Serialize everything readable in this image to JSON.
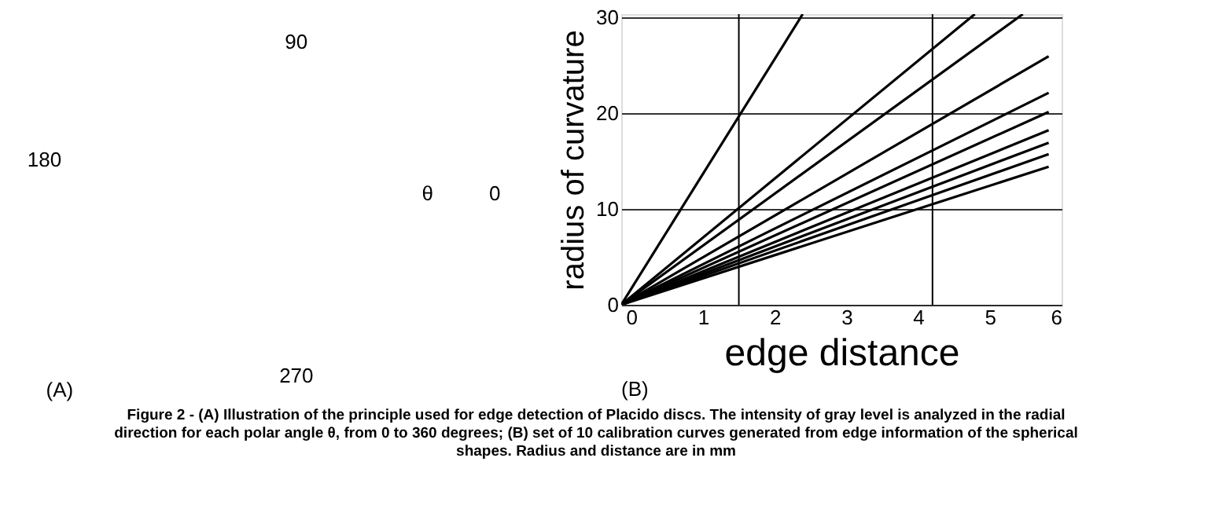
{
  "chart_data": {
    "type": "line",
    "xlabel": "edge distance",
    "ylabel": "radius of curvature",
    "xlim": [
      -0.14,
      6
    ],
    "ylim": [
      0,
      30.3
    ],
    "xticks": [
      0,
      1,
      2,
      3,
      4,
      5,
      6
    ],
    "yticks": [
      0,
      10,
      20,
      30
    ],
    "grid": "y",
    "legend": false,
    "line_style": "solid",
    "marker": "none",
    "ref_lines": [
      {
        "axis": "x",
        "value": 1.5,
        "color": "#000000"
      },
      {
        "axis": "x",
        "value": 4.2,
        "color": "#000000"
      }
    ],
    "series": [
      {
        "color": "#000000",
        "x": [
          -0.14,
          2.39
        ],
        "values": [
          0,
          30.3
        ]
      },
      {
        "color": "#000000",
        "x": [
          -0.14,
          4.79
        ],
        "values": [
          0,
          30.3
        ]
      },
      {
        "color": "#000000",
        "x": [
          -0.14,
          5.46
        ],
        "values": [
          0,
          30.3
        ]
      },
      {
        "color": "#000000",
        "x": [
          -0.14,
          5.82
        ],
        "values": [
          0,
          25.9
        ]
      },
      {
        "color": "#000000",
        "x": [
          -0.14,
          5.82
        ],
        "values": [
          0,
          22.1
        ]
      },
      {
        "color": "#000000",
        "x": [
          -0.14,
          5.82
        ],
        "values": [
          0,
          20.1
        ]
      },
      {
        "color": "#000000",
        "x": [
          -0.14,
          5.82
        ],
        "values": [
          0,
          18.2
        ]
      },
      {
        "color": "#000000",
        "x": [
          -0.14,
          5.82
        ],
        "values": [
          0,
          16.9
        ]
      },
      {
        "color": "#000000",
        "x": [
          -0.14,
          5.82
        ],
        "values": [
          0,
          15.7
        ]
      },
      {
        "color": "#000000",
        "x": [
          -0.14,
          5.82
        ],
        "values": [
          0,
          14.4
        ]
      }
    ],
    "annotations": [
      "90",
      "180",
      "0",
      "270",
      "θ",
      "(A)",
      "(B)",
      "Figure 2 - (A) Illustration of the principle used for edge detection of Placido discs. The intensity of gray level is analyzed in the radial direction for each polar angle θ, from 0 to 360 degrees; (B) set of 10 calibration curves generated from edge information of the spherical shapes. Radius and distance are in mm"
    ]
  }
}
